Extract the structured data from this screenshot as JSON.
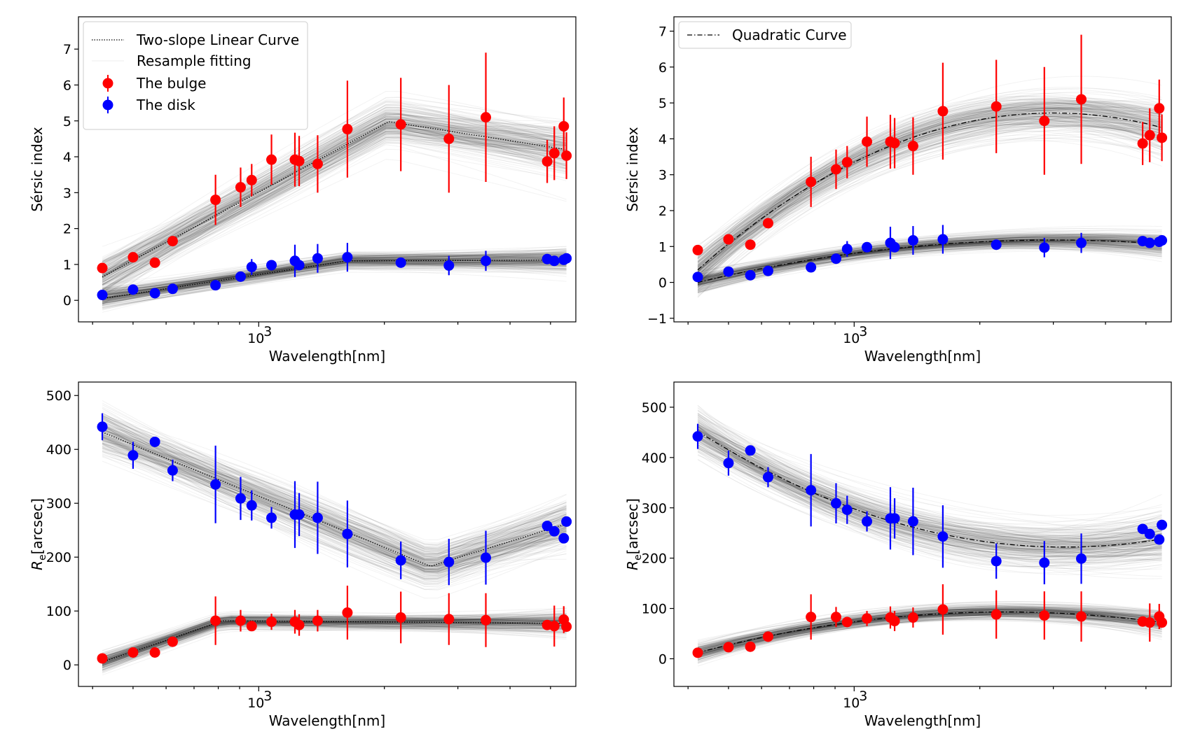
{
  "figure": {
    "colors": {
      "bulge": "#ff0000",
      "disk": "#0000ff",
      "curve": "#000000",
      "resample": "#808080"
    }
  },
  "chart_data": [
    {
      "type": "scatter",
      "panel": "top-left",
      "xscale": "log",
      "xlabel": "Wavelength[nm]",
      "ylabel": "Sérsic index",
      "xlim": [
        370,
        5750
      ],
      "ylim": [
        -0.6,
        7.9
      ],
      "xticks": [
        {
          "value": 1000,
          "base": "10",
          "exp": "3"
        }
      ],
      "yticks": [
        0,
        1,
        2,
        3,
        4,
        5,
        6,
        7
      ],
      "legend": {
        "position": "top-left",
        "entries": [
          "Two-slope Linear Curve",
          "Resample fitting",
          "The bulge",
          "The disk"
        ]
      },
      "series": [
        {
          "name": "The bulge",
          "color": "#ff0000",
          "x": [
            422,
            500,
            564,
            622,
            788,
            905,
            962,
            1073,
            1221,
            1250,
            1384,
            1631,
            2190,
            2855,
            3500,
            4910,
            5106,
            5380,
            5460
          ],
          "y": [
            0.9,
            1.2,
            1.05,
            1.65,
            2.8,
            3.15,
            3.35,
            3.92,
            3.92,
            3.88,
            3.8,
            4.77,
            4.9,
            4.5,
            5.1,
            3.87,
            4.1,
            4.85,
            4.03
          ],
          "yerr": [
            0,
            0,
            0,
            0,
            0.7,
            0.55,
            0.45,
            0.7,
            0.75,
            0.7,
            0.8,
            1.35,
            1.3,
            1.5,
            1.8,
            0.6,
            0.75,
            0.8,
            0.65
          ]
        },
        {
          "name": "The disk",
          "color": "#0000ff",
          "x": [
            422,
            500,
            564,
            622,
            788,
            905,
            962,
            1073,
            1221,
            1250,
            1384,
            1631,
            2190,
            2855,
            3500,
            4910,
            5106,
            5380,
            5460
          ],
          "y": [
            0.15,
            0.3,
            0.2,
            0.32,
            0.42,
            0.66,
            0.93,
            0.98,
            1.1,
            0.98,
            1.17,
            1.2,
            1.05,
            0.97,
            1.1,
            1.15,
            1.1,
            1.13,
            1.17
          ],
          "yerr": [
            0,
            0,
            0,
            0,
            0,
            0,
            0.22,
            0,
            0.45,
            0,
            0.4,
            0.4,
            0,
            0.27,
            0.28,
            0,
            0,
            0,
            0
          ]
        },
        {
          "name": "Two-slope Linear Curve",
          "style": "dotted",
          "color": "#000000",
          "segments": [
            {
              "x": [
                422,
                2050,
                5460
              ],
              "y": [
                0.65,
                4.98,
                4.2
              ]
            },
            {
              "x": [
                422,
                1630,
                5460
              ],
              "y": [
                0.05,
                1.1,
                1.12
              ]
            }
          ]
        }
      ]
    },
    {
      "type": "scatter",
      "panel": "top-right",
      "xscale": "log",
      "xlabel": "Wavelength[nm]",
      "ylabel": "Sérsic index",
      "xlim": [
        370,
        5750
      ],
      "ylim": [
        -1.1,
        7.4
      ],
      "xticks": [
        {
          "value": 1000,
          "base": "10",
          "exp": "3"
        }
      ],
      "yticks": [
        -1,
        0,
        1,
        2,
        3,
        4,
        5,
        6,
        7
      ],
      "legend": {
        "position": "top-left",
        "entries": [
          "Quadratic Curve"
        ]
      },
      "series": [
        {
          "name": "The bulge",
          "color": "#ff0000",
          "x": [
            422,
            500,
            564,
            622,
            788,
            905,
            962,
            1073,
            1221,
            1250,
            1384,
            1631,
            2190,
            2855,
            3500,
            4910,
            5106,
            5380,
            5460
          ],
          "y": [
            0.9,
            1.2,
            1.05,
            1.65,
            2.8,
            3.15,
            3.35,
            3.92,
            3.92,
            3.88,
            3.8,
            4.77,
            4.9,
            4.5,
            5.1,
            3.87,
            4.1,
            4.85,
            4.03
          ],
          "yerr": [
            0,
            0,
            0,
            0,
            0.7,
            0.55,
            0.45,
            0.7,
            0.75,
            0.7,
            0.8,
            1.35,
            1.3,
            1.5,
            1.8,
            0.6,
            0.75,
            0.8,
            0.65
          ]
        },
        {
          "name": "The disk",
          "color": "#0000ff",
          "x": [
            422,
            500,
            564,
            622,
            788,
            905,
            962,
            1073,
            1221,
            1250,
            1384,
            1631,
            2190,
            2855,
            3500,
            4910,
            5106,
            5380,
            5460
          ],
          "y": [
            0.15,
            0.3,
            0.2,
            0.32,
            0.42,
            0.66,
            0.93,
            0.98,
            1.1,
            0.98,
            1.17,
            1.2,
            1.05,
            0.97,
            1.1,
            1.15,
            1.1,
            1.13,
            1.17
          ],
          "yerr": [
            0,
            0,
            0,
            0,
            0,
            0,
            0.22,
            0,
            0.45,
            0,
            0.4,
            0.4,
            0,
            0.27,
            0.28,
            0,
            0,
            0,
            0
          ]
        },
        {
          "name": "Quadratic Curve",
          "style": "dashdot",
          "color": "#000000",
          "curves": [
            {
              "peak_x": 3000,
              "peak_y": 4.72,
              "left_x": 422,
              "left_y": 0.35
            },
            {
              "peak_x": 3000,
              "peak_y": 1.18,
              "left_x": 422,
              "left_y": 0.0
            }
          ]
        }
      ]
    },
    {
      "type": "scatter",
      "panel": "bottom-left",
      "xscale": "log",
      "xlabel": "Wavelength[nm]",
      "ylabel_main": "R",
      "ylabel_sub": "e",
      "ylabel_rest": "[arcsec]",
      "xlim": [
        370,
        5750
      ],
      "ylim": [
        -40,
        525
      ],
      "xticks": [
        {
          "value": 1000,
          "base": "10",
          "exp": "3"
        }
      ],
      "yticks": [
        0,
        100,
        200,
        300,
        400,
        500
      ],
      "series": [
        {
          "name": "The disk",
          "color": "#0000ff",
          "x": [
            422,
            500,
            564,
            622,
            788,
            905,
            962,
            1073,
            1221,
            1250,
            1384,
            1631,
            2190,
            2855,
            3500,
            4910,
            5106,
            5380,
            5460
          ],
          "y": [
            442,
            389,
            414,
            361,
            335,
            309,
            296,
            273,
            279,
            279,
            273,
            243,
            194,
            191,
            199,
            258,
            248,
            235,
            266
          ],
          "yerr": [
            25,
            25,
            0,
            20,
            72,
            40,
            28,
            20,
            62,
            40,
            67,
            62,
            35,
            43,
            50,
            0,
            0,
            0,
            0
          ]
        },
        {
          "name": "The bulge",
          "color": "#ff0000",
          "x": [
            422,
            500,
            564,
            622,
            788,
            905,
            962,
            1073,
            1221,
            1250,
            1384,
            1631,
            2190,
            2855,
            3500,
            4910,
            5106,
            5380,
            5460
          ],
          "y": [
            12,
            23,
            23,
            43,
            82,
            82,
            72,
            80,
            80,
            74,
            82,
            97,
            88,
            85,
            83,
            74,
            72,
            84,
            71
          ],
          "yerr": [
            0,
            0,
            0,
            0,
            45,
            20,
            0,
            15,
            22,
            20,
            20,
            50,
            48,
            48,
            50,
            0,
            38,
            25,
            0
          ]
        },
        {
          "name": "Two-slope Linear Curve",
          "style": "dotted",
          "color": "#000000",
          "segments": [
            {
              "x": [
                422,
                2580,
                5460
              ],
              "y": [
                432,
                183,
                262
              ]
            },
            {
              "x": [
                422,
                820,
                5460
              ],
              "y": [
                5,
                82,
                77
              ]
            }
          ]
        }
      ]
    },
    {
      "type": "scatter",
      "panel": "bottom-right",
      "xscale": "log",
      "xlabel": "Wavelength[nm]",
      "ylabel_main": "R",
      "ylabel_sub": "e",
      "ylabel_rest": "[arcsec]",
      "xlim": [
        370,
        5750
      ],
      "ylim": [
        -55,
        550
      ],
      "xticks": [
        {
          "value": 1000,
          "base": "10",
          "exp": "3"
        }
      ],
      "yticks": [
        0,
        100,
        200,
        300,
        400,
        500
      ],
      "series": [
        {
          "name": "The disk",
          "color": "#0000ff",
          "x": [
            422,
            500,
            564,
            622,
            788,
            905,
            962,
            1073,
            1221,
            1250,
            1384,
            1631,
            2190,
            2855,
            3500,
            4910,
            5106,
            5380,
            5460
          ],
          "y": [
            442,
            389,
            414,
            361,
            335,
            309,
            296,
            273,
            279,
            279,
            273,
            243,
            194,
            191,
            199,
            258,
            248,
            237,
            266
          ],
          "yerr": [
            25,
            25,
            0,
            20,
            72,
            40,
            28,
            20,
            62,
            40,
            67,
            62,
            35,
            43,
            50,
            0,
            0,
            0,
            0
          ]
        },
        {
          "name": "The bulge",
          "color": "#ff0000",
          "x": [
            422,
            500,
            564,
            622,
            788,
            905,
            962,
            1073,
            1221,
            1250,
            1384,
            1631,
            2190,
            2855,
            3500,
            4910,
            5106,
            5380,
            5460
          ],
          "y": [
            12,
            23,
            24,
            44,
            83,
            83,
            73,
            80,
            82,
            75,
            82,
            98,
            88,
            86,
            84,
            74,
            72,
            84,
            72
          ],
          "yerr": [
            0,
            0,
            0,
            0,
            45,
            20,
            0,
            15,
            22,
            20,
            20,
            50,
            48,
            48,
            50,
            0,
            38,
            25,
            0
          ]
        },
        {
          "name": "Quadratic Curve",
          "style": "dashdot",
          "color": "#000000",
          "curves": [
            {
              "vertex_x": 3200,
              "vertex_y": 222,
              "left_x": 422,
              "left_y": 452
            },
            {
              "vertex_x": 2300,
              "vertex_y": 93,
              "left_x": 422,
              "left_y": 12
            }
          ]
        }
      ]
    }
  ]
}
